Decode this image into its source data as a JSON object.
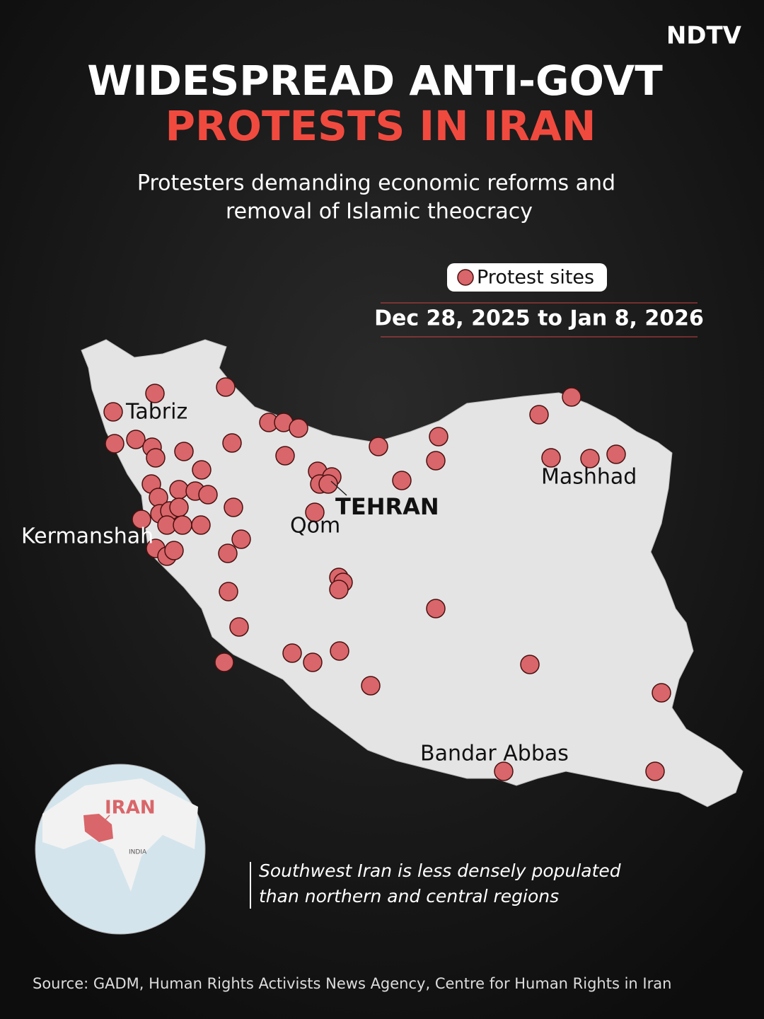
{
  "header": {
    "logo": "NDTV",
    "title_line1": "WIDESPREAD ANTI-GOVT",
    "title_line2": "PROTESTS IN IRAN",
    "subtitle_line1": "Protesters demanding economic reforms and",
    "subtitle_line2": "removal of Islamic theocracy"
  },
  "legend": {
    "label": "Protest sites",
    "date_range": "Dec 28, 2025 to Jan 8, 2026"
  },
  "map": {
    "cities": [
      "Tabriz",
      "Kermanshah",
      "TEHRAN",
      "Qom",
      "Mashhad",
      "Bandar Abbas"
    ]
  },
  "inset": {
    "country": "IRAN",
    "neighbor": "INDIA"
  },
  "note": {
    "line1": "Southwest Iran is less densely populated",
    "line2": "than northern and central regions"
  },
  "source": "Source: GADM, Human Rights Activists News Agency, Centre for Human Rights in Iran"
}
